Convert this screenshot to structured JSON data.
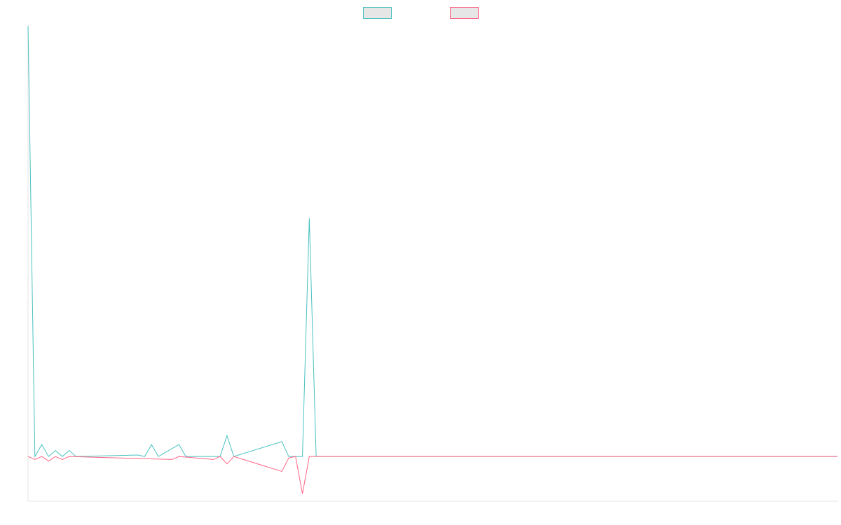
{
  "legend": {
    "items": [
      {
        "label": "",
        "color": "#4bc0c0",
        "fill": "#e6e6e6"
      },
      {
        "label": "",
        "color": "#ff6384",
        "fill": "#e6e6e6"
      }
    ]
  },
  "chart_data": {
    "type": "line",
    "title": "",
    "xlabel": "",
    "ylabel": "",
    "grid": false,
    "legend_placement": "top",
    "x_count": 119,
    "ylim": [
      -30,
      290
    ],
    "series": [
      {
        "color": "#4bc0c0",
        "points": [
          [
            0,
            289
          ],
          [
            1,
            0
          ],
          [
            2,
            8
          ],
          [
            3,
            0
          ],
          [
            4,
            4
          ],
          [
            5,
            0
          ],
          [
            6,
            4
          ],
          [
            7,
            0
          ],
          [
            16,
            1
          ],
          [
            17,
            0
          ],
          [
            18,
            8
          ],
          [
            19,
            0
          ],
          [
            22,
            8
          ],
          [
            23,
            0
          ],
          [
            28,
            0
          ],
          [
            29,
            14
          ],
          [
            30,
            0
          ],
          [
            37,
            10
          ],
          [
            38,
            0
          ],
          [
            39,
            0
          ],
          [
            40,
            0
          ],
          [
            41,
            160
          ],
          [
            42,
            0
          ],
          [
            118,
            0
          ]
        ]
      },
      {
        "color": "#ff6384",
        "points": [
          [
            0,
            0
          ],
          [
            1,
            -2
          ],
          [
            2,
            0
          ],
          [
            3,
            -3
          ],
          [
            4,
            0
          ],
          [
            5,
            -2
          ],
          [
            6,
            0
          ],
          [
            21,
            -2
          ],
          [
            22,
            0
          ],
          [
            27,
            -2
          ],
          [
            28,
            0
          ],
          [
            29,
            -5
          ],
          [
            30,
            0
          ],
          [
            37,
            -10
          ],
          [
            38,
            -1
          ],
          [
            39,
            0
          ],
          [
            40,
            -25
          ],
          [
            41,
            0
          ],
          [
            118,
            0
          ]
        ]
      }
    ]
  }
}
